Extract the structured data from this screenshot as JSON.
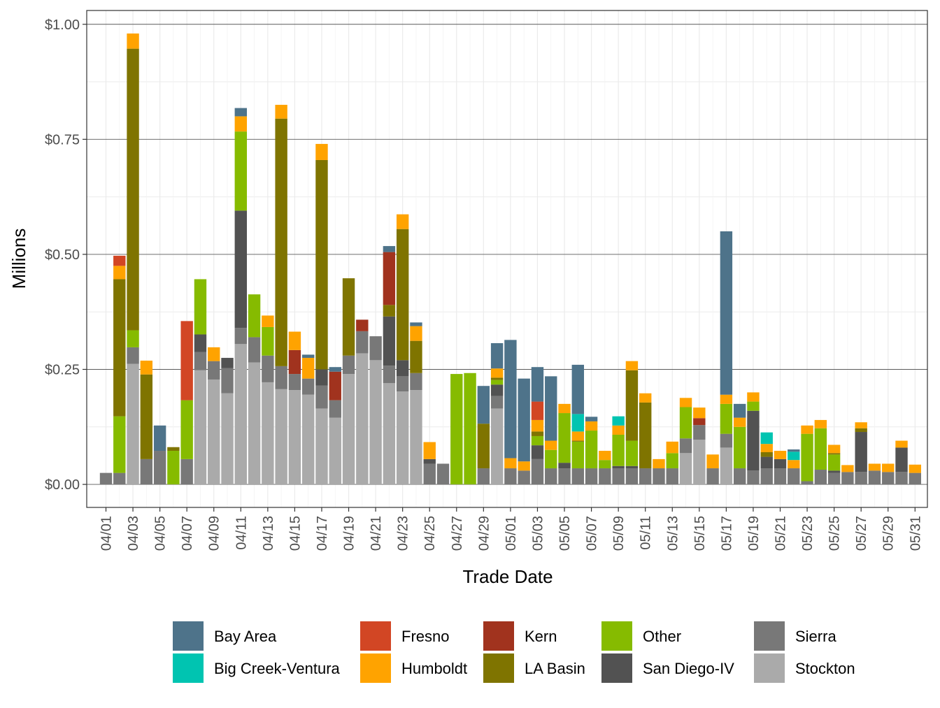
{
  "chart_data": {
    "type": "bar",
    "stacked": true,
    "title": "",
    "xlabel": "Trade Date",
    "ylabel": "Millions",
    "ylim": [
      -0.05,
      1.03
    ],
    "yticks": [
      0,
      0.25,
      0.5,
      0.75,
      1.0
    ],
    "ytick_labels": [
      "$0.00",
      "$0.25",
      "$0.50",
      "$0.75",
      "$1.00"
    ],
    "xtick_labels": [
      "04/01",
      "04/03",
      "04/05",
      "04/07",
      "04/09",
      "04/11",
      "04/13",
      "04/15",
      "04/17",
      "04/19",
      "04/21",
      "04/23",
      "04/25",
      "04/27",
      "04/29",
      "05/01",
      "05/03",
      "05/05",
      "05/07",
      "05/09",
      "05/11",
      "05/13",
      "05/15",
      "05/17",
      "05/19",
      "05/21",
      "05/23",
      "05/25",
      "05/27",
      "05/29",
      "05/31"
    ],
    "grid": true,
    "legend_position": "bottom",
    "series_order_bottom_to_top": [
      "Stockton",
      "Sierra",
      "San Diego-IV",
      "Other",
      "LA Basin",
      "Kern",
      "Humboldt",
      "Fresno",
      "Big Creek-Ventura",
      "Bay Area"
    ],
    "series": [
      {
        "name": "Bay Area",
        "color": "#4e738a"
      },
      {
        "name": "Big Creek-Ventura",
        "color": "#00c4b1"
      },
      {
        "name": "Fresno",
        "color": "#d24624"
      },
      {
        "name": "Humboldt",
        "color": "#ffa300"
      },
      {
        "name": "Kern",
        "color": "#a1331e"
      },
      {
        "name": "LA Basin",
        "color": "#7f7400"
      },
      {
        "name": "Other",
        "color": "#86bb00"
      },
      {
        "name": "San Diego-IV",
        "color": "#525252"
      },
      {
        "name": "Sierra",
        "color": "#787878"
      },
      {
        "name": "Stockton",
        "color": "#aaaaaa"
      }
    ],
    "bars": [
      {
        "date": "04/01",
        "segments": {
          "Sierra": 0.025
        }
      },
      {
        "date": "04/02",
        "segments": {
          "Sierra": 0.025,
          "Other": 0.123,
          "LA Basin": 0.298,
          "Humboldt": 0.029,
          "Fresno": 0.022
        }
      },
      {
        "date": "04/03",
        "segments": {
          "Stockton": 0.262,
          "Sierra": 0.036,
          "Other": 0.037,
          "LA Basin": 0.612,
          "Humboldt": 0.033
        }
      },
      {
        "date": "04/04",
        "segments": {
          "Sierra": 0.055,
          "LA Basin": 0.184,
          "Humboldt": 0.03
        }
      },
      {
        "date": "04/05",
        "segments": {
          "Sierra": 0.073,
          "Bay Area": 0.055
        }
      },
      {
        "date": "04/06",
        "segments": {
          "Other": 0.073,
          "LA Basin": 0.008
        }
      },
      {
        "date": "04/07",
        "segments": {
          "Sierra": 0.055,
          "Other": 0.128,
          "Fresno": 0.172
        }
      },
      {
        "date": "04/08",
        "segments": {
          "Stockton": 0.248,
          "Sierra": 0.04,
          "San Diego-IV": 0.038,
          "Other": 0.12
        }
      },
      {
        "date": "04/09",
        "segments": {
          "Stockton": 0.228,
          "Sierra": 0.04,
          "Humboldt": 0.03
        }
      },
      {
        "date": "04/10",
        "segments": {
          "Stockton": 0.198,
          "Sierra": 0.055,
          "San Diego-IV": 0.022
        }
      },
      {
        "date": "04/11",
        "segments": {
          "Stockton": 0.305,
          "Sierra": 0.035,
          "San Diego-IV": 0.255,
          "Other": 0.172,
          "Humboldt": 0.033,
          "Bay Area": 0.018
        }
      },
      {
        "date": "04/12",
        "segments": {
          "Stockton": 0.265,
          "Sierra": 0.055,
          "Other": 0.093
        }
      },
      {
        "date": "04/13",
        "segments": {
          "Stockton": 0.222,
          "Sierra": 0.058,
          "Other": 0.062,
          "Humboldt": 0.025
        }
      },
      {
        "date": "04/14",
        "segments": {
          "Stockton": 0.207,
          "Sierra": 0.05,
          "LA Basin": 0.538,
          "Humboldt": 0.03
        }
      },
      {
        "date": "04/15",
        "segments": {
          "Stockton": 0.205,
          "Sierra": 0.035,
          "Kern": 0.052,
          "Humboldt": 0.04
        }
      },
      {
        "date": "04/16",
        "segments": {
          "Stockton": 0.195,
          "Sierra": 0.035,
          "Humboldt": 0.045,
          "Bay Area": 0.007
        }
      },
      {
        "date": "04/17",
        "segments": {
          "Stockton": 0.165,
          "Sierra": 0.05,
          "San Diego-IV": 0.035,
          "LA Basin": 0.455,
          "Humboldt": 0.035
        }
      },
      {
        "date": "04/18",
        "segments": {
          "Stockton": 0.145,
          "Sierra": 0.038,
          "Kern": 0.062,
          "Bay Area": 0.01
        }
      },
      {
        "date": "04/19",
        "segments": {
          "Stockton": 0.24,
          "Sierra": 0.04,
          "LA Basin": 0.168
        }
      },
      {
        "date": "04/20",
        "segments": {
          "Stockton": 0.285,
          "Sierra": 0.048,
          "Kern": 0.025
        }
      },
      {
        "date": "04/21",
        "segments": {
          "Stockton": 0.27,
          "Sierra": 0.052
        }
      },
      {
        "date": "04/22",
        "segments": {
          "Stockton": 0.22,
          "Sierra": 0.038,
          "San Diego-IV": 0.107,
          "LA Basin": 0.025,
          "Kern": 0.115,
          "Bay Area": 0.013
        }
      },
      {
        "date": "04/23",
        "segments": {
          "Stockton": 0.202,
          "Sierra": 0.033,
          "San Diego-IV": 0.035,
          "LA Basin": 0.285,
          "Humboldt": 0.032
        }
      },
      {
        "date": "04/24",
        "segments": {
          "Stockton": 0.205,
          "Sierra": 0.037,
          "LA Basin": 0.07,
          "Humboldt": 0.032,
          "Bay Area": 0.008
        }
      },
      {
        "date": "04/25",
        "segments": {
          "Sierra": 0.045,
          "San Diego-IV": 0.01,
          "Humboldt": 0.037
        }
      },
      {
        "date": "04/26",
        "segments": {
          "Sierra": 0.045
        }
      },
      {
        "date": "04/27",
        "segments": {
          "Other": 0.24
        }
      },
      {
        "date": "04/28",
        "segments": {
          "Other": 0.242
        }
      },
      {
        "date": "04/29",
        "segments": {
          "Sierra": 0.035,
          "LA Basin": 0.097,
          "Bay Area": 0.082
        }
      },
      {
        "date": "04/30",
        "segments": {
          "Stockton": 0.165,
          "Sierra": 0.027,
          "San Diego-IV": 0.025,
          "Other": 0.01,
          "LA Basin": 0.005,
          "Humboldt": 0.02,
          "Bay Area": 0.055
        }
      },
      {
        "date": "05/01",
        "segments": {
          "Sierra": 0.035,
          "Humboldt": 0.022,
          "Bay Area": 0.257
        }
      },
      {
        "date": "05/02",
        "segments": {
          "Sierra": 0.03,
          "Humboldt": 0.02,
          "Bay Area": 0.18
        }
      },
      {
        "date": "05/03",
        "segments": {
          "Sierra": 0.055,
          "San Diego-IV": 0.03,
          "LA Basin": 0.01,
          "Other": 0.02,
          "Humboldt": 0.025,
          "Fresno": 0.04,
          "Bay Area": 0.075
        }
      },
      {
        "date": "05/04",
        "segments": {
          "Sierra": 0.035,
          "Other": 0.04,
          "Humboldt": 0.02,
          "Bay Area": 0.14
        }
      },
      {
        "date": "05/05",
        "segments": {
          "Sierra": 0.035,
          "San Diego-IV": 0.012,
          "Other": 0.108,
          "Humboldt": 0.02
        }
      },
      {
        "date": "05/06",
        "segments": {
          "Sierra": 0.035,
          "Other": 0.058,
          "LA Basin": 0.002,
          "Humboldt": 0.02,
          "Big Creek-Ventura": 0.038,
          "Bay Area": 0.107
        }
      },
      {
        "date": "05/07",
        "segments": {
          "Sierra": 0.035,
          "Other": 0.082,
          "Humboldt": 0.02,
          "Bay Area": 0.01
        }
      },
      {
        "date": "05/08",
        "segments": {
          "Sierra": 0.035,
          "Other": 0.018,
          "Humboldt": 0.02
        }
      },
      {
        "date": "05/09",
        "segments": {
          "Sierra": 0.035,
          "San Diego-IV": 0.005,
          "Other": 0.068,
          "Humboldt": 0.02,
          "Big Creek-Ventura": 0.02
        }
      },
      {
        "date": "05/10",
        "segments": {
          "Sierra": 0.035,
          "San Diego-IV": 0.005,
          "Other": 0.055,
          "LA Basin": 0.153,
          "Humboldt": 0.02
        }
      },
      {
        "date": "05/11",
        "segments": {
          "Sierra": 0.035,
          "LA Basin": 0.143,
          "Humboldt": 0.02
        }
      },
      {
        "date": "05/12",
        "segments": {
          "Sierra": 0.035,
          "Humboldt": 0.02
        }
      },
      {
        "date": "05/13",
        "segments": {
          "Sierra": 0.035,
          "Other": 0.033,
          "Humboldt": 0.025
        }
      },
      {
        "date": "05/14",
        "segments": {
          "Stockton": 0.068,
          "Sierra": 0.032,
          "Other": 0.068,
          "Humboldt": 0.02
        }
      },
      {
        "date": "05/15",
        "segments": {
          "Stockton": 0.097,
          "Sierra": 0.032,
          "Kern": 0.015,
          "Humboldt": 0.023
        }
      },
      {
        "date": "05/16",
        "segments": {
          "Sierra": 0.035,
          "Humboldt": 0.03
        }
      },
      {
        "date": "05/17",
        "segments": {
          "Stockton": 0.08,
          "Sierra": 0.03,
          "Other": 0.065,
          "Humboldt": 0.02,
          "Bay Area": 0.355
        }
      },
      {
        "date": "05/18",
        "segments": {
          "Sierra": 0.035,
          "Other": 0.09,
          "Humboldt": 0.02,
          "Bay Area": 0.03
        }
      },
      {
        "date": "05/19",
        "segments": {
          "Sierra": 0.03,
          "San Diego-IV": 0.13,
          "Other": 0.02,
          "Humboldt": 0.02
        }
      },
      {
        "date": "05/20",
        "segments": {
          "Sierra": 0.035,
          "San Diego-IV": 0.025,
          "LA Basin": 0.01,
          "Humboldt": 0.018,
          "Big Creek-Ventura": 0.025
        }
      },
      {
        "date": "05/21",
        "segments": {
          "Sierra": 0.035,
          "San Diego-IV": 0.02,
          "Humboldt": 0.018
        }
      },
      {
        "date": "05/22",
        "segments": {
          "Sierra": 0.035,
          "Humboldt": 0.018,
          "Big Creek-Ventura": 0.018,
          "Bay Area": 0.005
        }
      },
      {
        "date": "05/23",
        "segments": {
          "Sierra": 0.007,
          "Other": 0.103,
          "Humboldt": 0.018
        }
      },
      {
        "date": "05/24",
        "segments": {
          "Sierra": 0.032,
          "Other": 0.09,
          "Humboldt": 0.018
        }
      },
      {
        "date": "05/25",
        "segments": {
          "Sierra": 0.025,
          "San Diego-IV": 0.005,
          "Other": 0.035,
          "LA Basin": 0.003,
          "Humboldt": 0.018
        }
      },
      {
        "date": "05/26",
        "segments": {
          "Sierra": 0.027,
          "Humboldt": 0.015
        }
      },
      {
        "date": "05/27",
        "segments": {
          "Sierra": 0.027,
          "San Diego-IV": 0.087,
          "LA Basin": 0.008,
          "Humboldt": 0.013
        }
      },
      {
        "date": "05/28",
        "segments": {
          "Sierra": 0.03,
          "Humboldt": 0.015
        }
      },
      {
        "date": "05/29",
        "segments": {
          "Sierra": 0.027,
          "Humboldt": 0.018
        }
      },
      {
        "date": "05/30",
        "segments": {
          "Sierra": 0.027,
          "San Diego-IV": 0.053,
          "Humboldt": 0.015
        }
      },
      {
        "date": "05/31",
        "segments": {
          "Sierra": 0.025,
          "Humboldt": 0.018
        }
      }
    ]
  }
}
